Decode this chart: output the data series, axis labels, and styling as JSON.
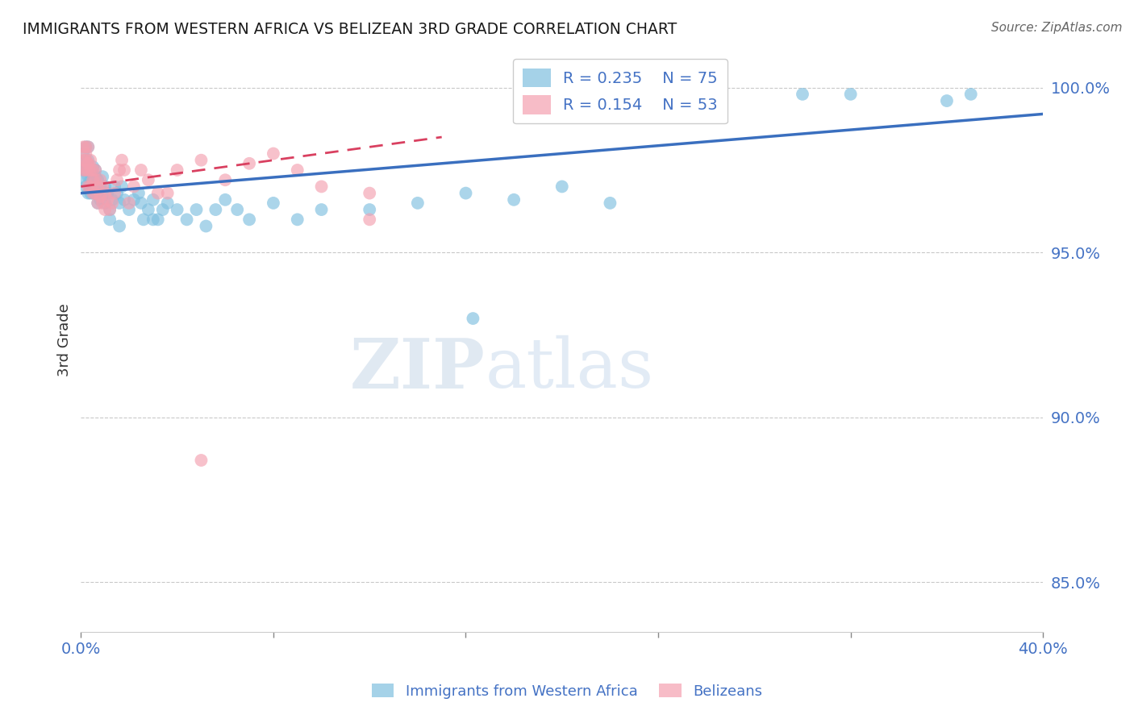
{
  "title": "IMMIGRANTS FROM WESTERN AFRICA VS BELIZEAN 3RD GRADE CORRELATION CHART",
  "source": "Source: ZipAtlas.com",
  "ylabel": "3rd Grade",
  "xlim": [
    0.0,
    0.4
  ],
  "ylim": [
    0.835,
    1.012
  ],
  "xtick_positions": [
    0.0,
    0.08,
    0.16,
    0.24,
    0.32,
    0.4
  ],
  "xticklabels": [
    "0.0%",
    "",
    "",
    "",
    "",
    "40.0%"
  ],
  "ytick_positions": [
    0.85,
    0.9,
    0.95,
    1.0
  ],
  "yticklabels": [
    "85.0%",
    "90.0%",
    "95.0%",
    "100.0%"
  ],
  "blue_R": 0.235,
  "blue_N": 75,
  "pink_R": 0.154,
  "pink_N": 53,
  "blue_color": "#7fbfdf",
  "pink_color": "#f4a0b0",
  "blue_line_color": "#3a6fbf",
  "pink_line_color": "#d94060",
  "watermark_text": "ZIPatlas",
  "background_color": "#ffffff",
  "grid_color": "#bbbbbb",
  "blue_x": [
    0.001,
    0.001,
    0.001,
    0.002,
    0.002,
    0.002,
    0.002,
    0.003,
    0.003,
    0.003,
    0.003,
    0.003,
    0.004,
    0.004,
    0.004,
    0.004,
    0.005,
    0.005,
    0.005,
    0.005,
    0.006,
    0.006,
    0.006,
    0.007,
    0.007,
    0.007,
    0.008,
    0.008,
    0.009,
    0.009,
    0.01,
    0.01,
    0.011,
    0.012,
    0.013,
    0.014,
    0.015,
    0.016,
    0.017,
    0.018,
    0.02,
    0.022,
    0.024,
    0.026,
    0.028,
    0.03,
    0.032,
    0.034,
    0.036,
    0.04,
    0.044,
    0.048,
    0.052,
    0.056,
    0.06,
    0.065,
    0.07,
    0.08,
    0.09,
    0.1,
    0.12,
    0.14,
    0.16,
    0.18,
    0.2,
    0.22,
    0.3,
    0.32,
    0.36,
    0.37,
    0.012,
    0.016,
    0.025,
    0.03,
    0.163
  ],
  "blue_y": [
    0.975,
    0.98,
    0.972,
    0.978,
    0.982,
    0.97,
    0.975,
    0.968,
    0.973,
    0.978,
    0.982,
    0.976,
    0.97,
    0.975,
    0.968,
    0.972,
    0.968,
    0.973,
    0.976,
    0.97,
    0.973,
    0.968,
    0.975,
    0.968,
    0.972,
    0.965,
    0.97,
    0.966,
    0.968,
    0.973,
    0.965,
    0.97,
    0.968,
    0.963,
    0.966,
    0.97,
    0.968,
    0.965,
    0.97,
    0.966,
    0.963,
    0.966,
    0.968,
    0.96,
    0.963,
    0.966,
    0.96,
    0.963,
    0.965,
    0.963,
    0.96,
    0.963,
    0.958,
    0.963,
    0.966,
    0.963,
    0.96,
    0.965,
    0.96,
    0.963,
    0.963,
    0.965,
    0.968,
    0.966,
    0.97,
    0.965,
    0.998,
    0.998,
    0.996,
    0.998,
    0.96,
    0.958,
    0.965,
    0.96,
    0.93
  ],
  "pink_x": [
    0.001,
    0.001,
    0.001,
    0.002,
    0.002,
    0.002,
    0.002,
    0.003,
    0.003,
    0.003,
    0.003,
    0.003,
    0.004,
    0.004,
    0.004,
    0.005,
    0.005,
    0.005,
    0.006,
    0.006,
    0.006,
    0.007,
    0.007,
    0.008,
    0.008,
    0.009,
    0.009,
    0.01,
    0.01,
    0.011,
    0.012,
    0.013,
    0.014,
    0.015,
    0.016,
    0.017,
    0.018,
    0.02,
    0.022,
    0.025,
    0.028,
    0.032,
    0.036,
    0.04,
    0.05,
    0.06,
    0.07,
    0.08,
    0.09,
    0.1,
    0.12,
    0.05,
    0.12
  ],
  "pink_y": [
    0.978,
    0.982,
    0.975,
    0.98,
    0.975,
    0.978,
    0.982,
    0.977,
    0.982,
    0.975,
    0.97,
    0.977,
    0.975,
    0.97,
    0.978,
    0.972,
    0.975,
    0.968,
    0.972,
    0.968,
    0.975,
    0.97,
    0.965,
    0.972,
    0.967,
    0.965,
    0.97,
    0.968,
    0.963,
    0.966,
    0.963,
    0.965,
    0.968,
    0.972,
    0.975,
    0.978,
    0.975,
    0.965,
    0.97,
    0.975,
    0.972,
    0.968,
    0.968,
    0.975,
    0.978,
    0.972,
    0.977,
    0.98,
    0.975,
    0.97,
    0.968,
    0.887,
    0.96
  ],
  "blue_trend_x": [
    0.0,
    0.4
  ],
  "blue_trend_y": [
    0.968,
    0.992
  ],
  "pink_trend_x": [
    0.0,
    0.15
  ],
  "pink_trend_y": [
    0.97,
    0.985
  ]
}
